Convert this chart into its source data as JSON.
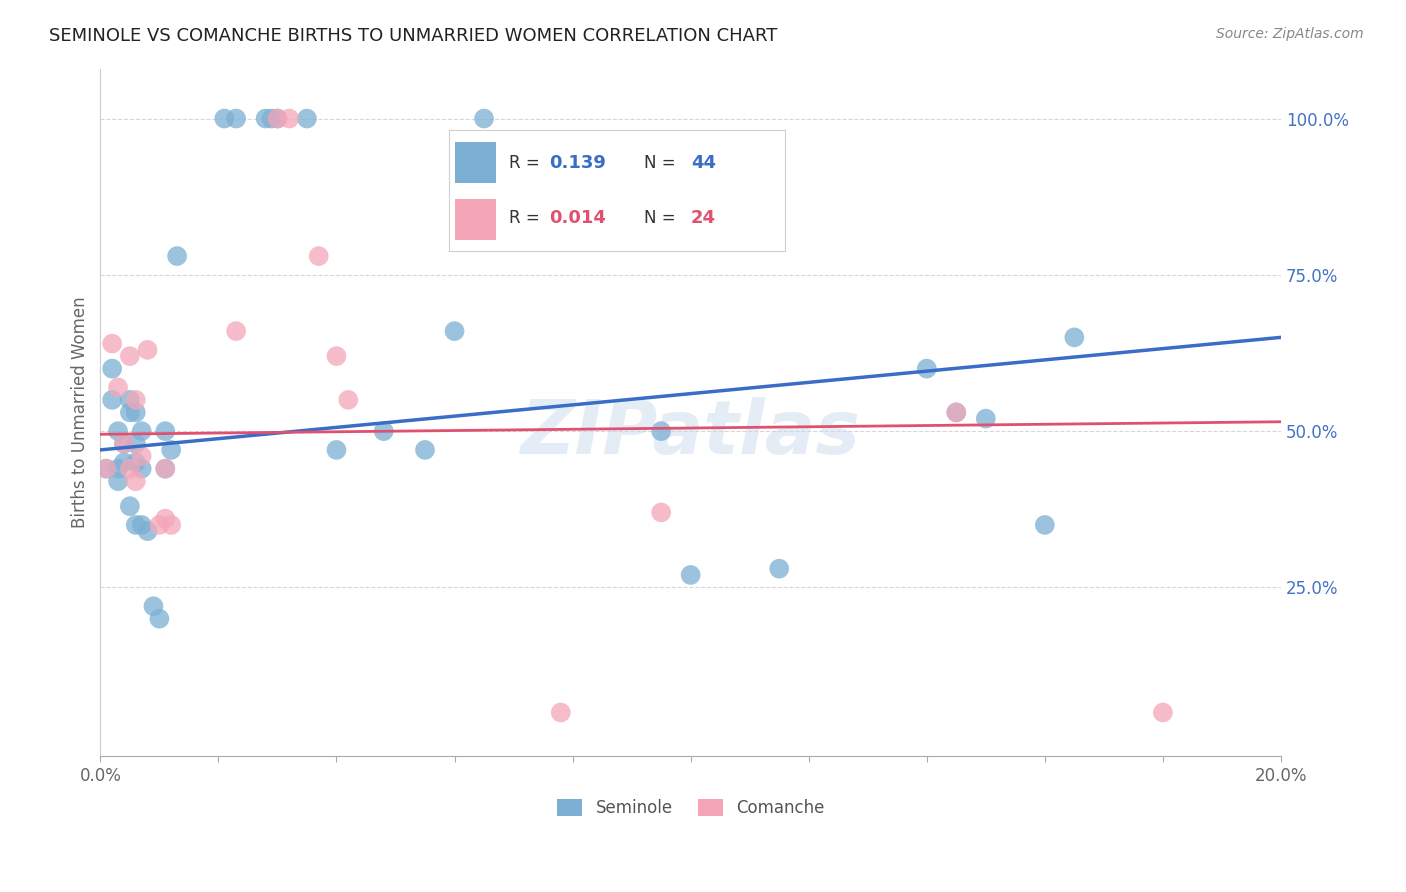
{
  "title": "SEMINOLE VS COMANCHE BIRTHS TO UNMARRIED WOMEN CORRELATION CHART",
  "source": "Source: ZipAtlas.com",
  "ylabel": "Births to Unmarried Women",
  "xlim": [
    0.0,
    0.2
  ],
  "ylim": [
    -0.02,
    1.08
  ],
  "legend_blue_R": "0.139",
  "legend_blue_N": "44",
  "legend_pink_R": "0.014",
  "legend_pink_N": "24",
  "seminole_x": [
    0.001,
    0.002,
    0.002,
    0.003,
    0.003,
    0.003,
    0.004,
    0.004,
    0.005,
    0.005,
    0.005,
    0.006,
    0.006,
    0.006,
    0.006,
    0.007,
    0.007,
    0.007,
    0.008,
    0.009,
    0.01,
    0.011,
    0.011,
    0.012,
    0.013,
    0.021,
    0.023,
    0.028,
    0.029,
    0.03,
    0.035,
    0.04,
    0.048,
    0.055,
    0.06,
    0.065,
    0.095,
    0.1,
    0.115,
    0.14,
    0.145,
    0.15,
    0.16,
    0.165
  ],
  "seminole_y": [
    0.44,
    0.6,
    0.55,
    0.5,
    0.44,
    0.42,
    0.48,
    0.45,
    0.55,
    0.53,
    0.38,
    0.53,
    0.48,
    0.45,
    0.35,
    0.5,
    0.44,
    0.35,
    0.34,
    0.22,
    0.2,
    0.5,
    0.44,
    0.47,
    0.78,
    1.0,
    1.0,
    1.0,
    1.0,
    1.0,
    1.0,
    0.47,
    0.5,
    0.47,
    0.66,
    1.0,
    0.5,
    0.27,
    0.28,
    0.6,
    0.53,
    0.52,
    0.35,
    0.65
  ],
  "comanche_x": [
    0.001,
    0.002,
    0.003,
    0.004,
    0.005,
    0.005,
    0.006,
    0.006,
    0.007,
    0.008,
    0.01,
    0.011,
    0.011,
    0.012,
    0.023,
    0.03,
    0.032,
    0.037,
    0.04,
    0.042,
    0.078,
    0.095,
    0.145,
    0.18
  ],
  "comanche_y": [
    0.44,
    0.64,
    0.57,
    0.48,
    0.62,
    0.44,
    0.55,
    0.42,
    0.46,
    0.63,
    0.35,
    0.44,
    0.36,
    0.35,
    0.66,
    1.0,
    1.0,
    0.78,
    0.62,
    0.55,
    0.05,
    0.37,
    0.53,
    0.05
  ],
  "background_color": "#ffffff",
  "blue_color": "#7bafd4",
  "pink_color": "#f4a6b8",
  "blue_line_color": "#3a6dc5",
  "pink_line_color": "#e05070",
  "grid_color": "#cccccc",
  "title_color": "#333333",
  "axis_label_color": "#666666",
  "right_axis_color": "#4472c4",
  "watermark": "ZIPatlas"
}
